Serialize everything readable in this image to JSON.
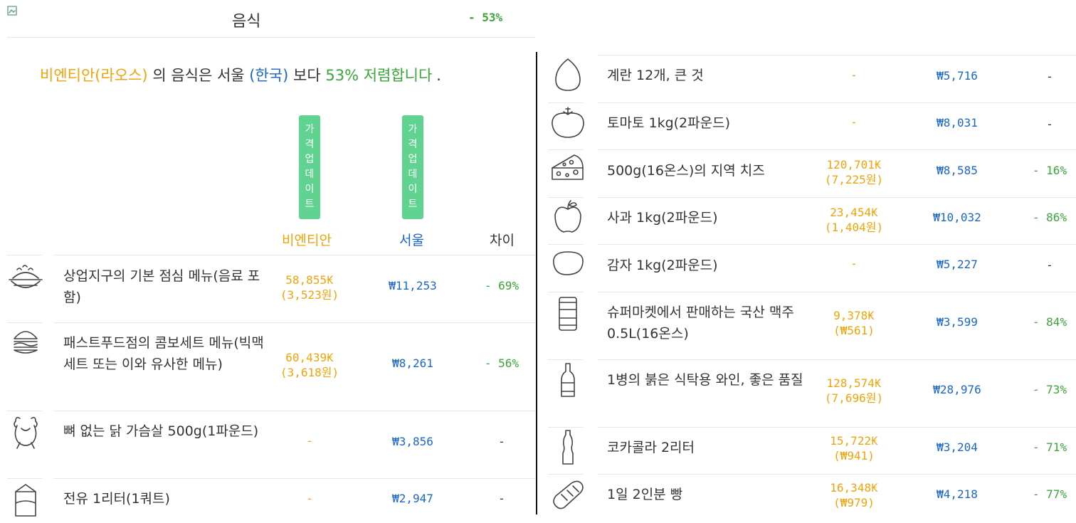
{
  "header": {
    "title": "음식",
    "diff": "- 53%"
  },
  "summary": {
    "city_a": "비엔티안(라오스)",
    "part1": "의 음식은 서울",
    "city_b": "(한국)",
    "part2": "보다",
    "pct": "53% 저렴합니다",
    "end": "."
  },
  "update_button": {
    "chars": [
      "가",
      "격",
      "업",
      "데",
      "이",
      "트"
    ]
  },
  "columns": {
    "city_a": "비엔티안",
    "city_b": "서울",
    "diff": "차이"
  },
  "left_rows": [
    {
      "icon": "lunch-plate-icon",
      "name": "상업지구의 기본 점심 메뉴(음료 포함)",
      "price_a": "58,855₭",
      "price_a2": "(3,523원)",
      "price_b": "₩11,253",
      "diff": "- 69%"
    },
    {
      "icon": "burger-icon",
      "name": "패스트푸드점의 콤보세트 메뉴(빅맥세트 또는 이와 유사한 메뉴)",
      "price_a": "60,439₭",
      "price_a2": "(3,618원)",
      "price_b": "₩8,261",
      "diff": "- 56%"
    },
    {
      "icon": "chicken-icon",
      "name": "뼈 없는 닭 가슴살 500g(1파운드)",
      "price_a": "-",
      "price_a2": "",
      "price_b": "₩3,856",
      "diff": "-"
    },
    {
      "icon": "milk-carton-icon",
      "name": "전유 1리터(1쿼트)",
      "price_a": "-",
      "price_a2": "",
      "price_b": "₩2,947",
      "diff": "-"
    }
  ],
  "right_rows": [
    {
      "icon": "egg-icon",
      "name": "계란 12개, 큰 것",
      "price_a": "-",
      "price_a2": "",
      "price_b": "₩5,716",
      "diff": "-"
    },
    {
      "icon": "tomato-icon",
      "name": "토마토 1kg(2파운드)",
      "price_a": "-",
      "price_a2": "",
      "price_b": "₩8,031",
      "diff": "-"
    },
    {
      "icon": "cheese-icon",
      "name": "500g(16온스)의 지역 치즈",
      "price_a": "120,701₭",
      "price_a2": "(7,225원)",
      "price_b": "₩8,585",
      "diff": "- 16%"
    },
    {
      "icon": "apple-icon",
      "name": "사과 1kg(2파운드)",
      "price_a": "23,454₭",
      "price_a2": "(1,404원)",
      "price_b": "₩10,032",
      "diff": "- 86%"
    },
    {
      "icon": "potato-icon",
      "name": "감자 1kg(2파운드)",
      "price_a": "-",
      "price_a2": "",
      "price_b": "₩5,227",
      "diff": "-"
    },
    {
      "icon": "beer-can-icon",
      "name": "슈퍼마켓에서 판매하는 국산 맥주 0.5L(16온스)",
      "price_a": "9,378₭",
      "price_a2": "(₩561)",
      "price_b": "₩3,599",
      "diff": "- 84%"
    },
    {
      "icon": "wine-bottle-icon",
      "name": "1병의 붉은 식탁용 와인, 좋은 품질",
      "price_a": "128,574₭",
      "price_a2": "(7,696원)",
      "price_b": "₩28,976",
      "diff": "- 73%"
    },
    {
      "icon": "soda-bottle-icon",
      "name": "코카콜라 2리터",
      "price_a": "15,722₭",
      "price_a2": "(₩941)",
      "price_b": "₩3,204",
      "diff": "- 71%"
    },
    {
      "icon": "bread-icon",
      "name": "1일 2인분 빵",
      "price_a": "16,348₭",
      "price_a2": "(₩979)",
      "price_b": "₩4,218",
      "diff": "- 77%"
    }
  ]
}
